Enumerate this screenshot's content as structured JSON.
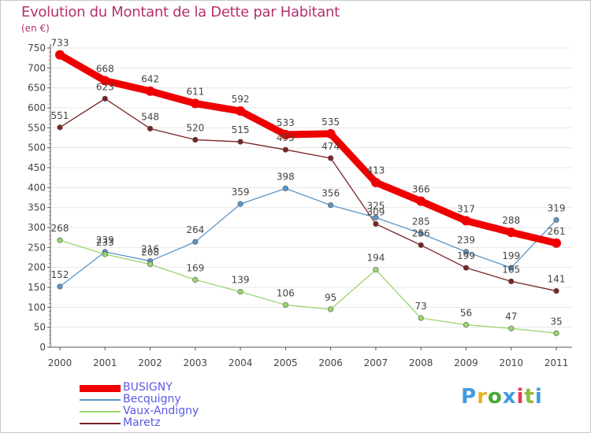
{
  "title": "Evolution du Montant de la Dette par Habitant",
  "unit": "(en €)",
  "logo": {
    "letters": [
      "P",
      "r",
      "o",
      "x",
      "i",
      "t",
      "i"
    ],
    "colors": [
      "#3f9be0",
      "#e8b22a",
      "#49a82f",
      "#3f9be0",
      "#e63a4e",
      "#8dbb37",
      "#3f9be0"
    ]
  },
  "colors": {
    "axis": "#555555",
    "grid": "#e8e8e8",
    "tick_minor": "#e05a5a",
    "label_text": "#444444"
  },
  "chart_data": {
    "type": "line",
    "x": [
      "2000",
      "2001",
      "2002",
      "2003",
      "2004",
      "2005",
      "2006",
      "2007",
      "2008",
      "2009",
      "2010",
      "2011"
    ],
    "ylim": [
      0,
      750
    ],
    "yticks": [
      0,
      50,
      100,
      150,
      200,
      250,
      300,
      350,
      400,
      450,
      500,
      550,
      600,
      650,
      700,
      750
    ],
    "grid": true,
    "legend_position": "bottom-left",
    "series": [
      {
        "name": "BUSIGNY",
        "color": "#ee0000",
        "style": "thick",
        "values": [
          733,
          668,
          642,
          611,
          592,
          533,
          535,
          413,
          366,
          317,
          288,
          261
        ]
      },
      {
        "name": "Becquigny",
        "color": "#5b95c8",
        "style": "thin",
        "values": [
          152,
          239,
          216,
          264,
          359,
          398,
          356,
          325,
          285,
          239,
          199,
          319
        ]
      },
      {
        "name": "Vaux-Andigny",
        "color": "#99d66e",
        "style": "thin",
        "values": [
          268,
          233,
          208,
          169,
          139,
          106,
          95,
          194,
          73,
          56,
          47,
          35
        ]
      },
      {
        "name": "Maretz",
        "color": "#7a2424",
        "style": "thin",
        "values": [
          551,
          623,
          548,
          520,
          515,
          495,
          474,
          309,
          256,
          199,
          165,
          141
        ]
      }
    ]
  }
}
